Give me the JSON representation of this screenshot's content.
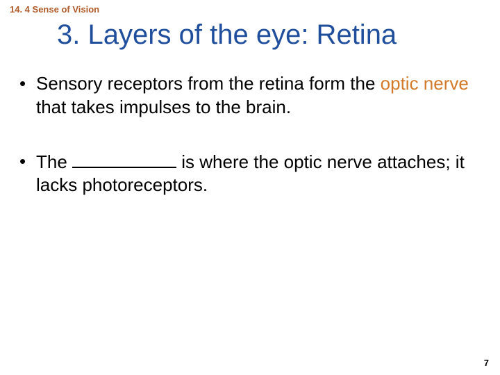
{
  "section_label": "14. 4 Sense of Vision",
  "title": "3. Layers of the eye: Retina",
  "bullets": [
    {
      "pre": "Sensory receptors from the retina form the ",
      "highlight": "optic nerve",
      "post": " that takes impulses to the brain."
    },
    {
      "pre": "The ",
      "blank": true,
      "post": " is where the optic nerve attaches; it lacks photoreceptors."
    }
  ],
  "page_number": "7",
  "colors": {
    "section_label": "#b05a2a",
    "title": "#1f4e9c",
    "body_text": "#000000",
    "highlight": "#d37a2a",
    "background": "#ffffff"
  },
  "fonts": {
    "section_label_size_pt": 10,
    "title_size_pt": 30,
    "body_size_pt": 20,
    "page_num_size_pt": 10
  }
}
